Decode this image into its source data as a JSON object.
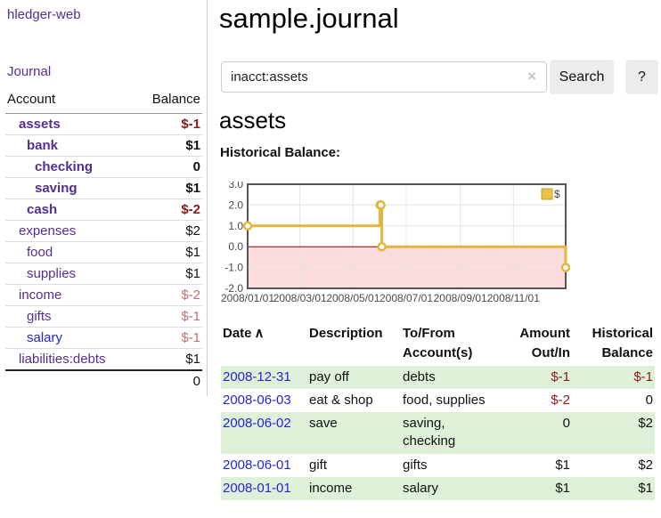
{
  "colors": {
    "link_purple": "#552e91",
    "link_blue": "#2525d6",
    "negative_strong": "#8b1a1a",
    "negative_muted": "#b97070",
    "row_green": "#dff0d8",
    "chart_line_gold": "#e3b53c",
    "chart_negative_fill": "#fbdbdb",
    "chart_zero_line": "#8b0000",
    "button_gray": "#ececec"
  },
  "sidebar": {
    "app_title": "hledger-web",
    "journal_link": "Journal",
    "accounts": {
      "headers": {
        "account": "Account",
        "balance": "Balance"
      },
      "rows": [
        {
          "name": "assets",
          "depth": 0,
          "bold": true,
          "name_color": "purple",
          "balance": "$-1",
          "balance_color": "maroon"
        },
        {
          "name": "bank",
          "depth": 1,
          "bold": true,
          "name_color": "purple",
          "balance": "$1",
          "balance_color": "black"
        },
        {
          "name": "checking",
          "depth": 2,
          "bold": true,
          "name_color": "purple",
          "balance": "0",
          "balance_color": "black"
        },
        {
          "name": "saving",
          "depth": 2,
          "bold": true,
          "name_color": "purple",
          "balance": "$1",
          "balance_color": "black"
        },
        {
          "name": "cash",
          "depth": 1,
          "bold": true,
          "name_color": "purple",
          "balance": "$-2",
          "balance_color": "maroon"
        },
        {
          "name": "expenses",
          "depth": 0,
          "bold": false,
          "name_color": "purple",
          "balance": "$2",
          "balance_color": "black"
        },
        {
          "name": "food",
          "depth": 1,
          "bold": false,
          "name_color": "purple",
          "balance": "$1",
          "balance_color": "black"
        },
        {
          "name": "supplies",
          "depth": 1,
          "bold": false,
          "name_color": "purple",
          "balance": "$1",
          "balance_color": "black"
        },
        {
          "name": "income",
          "depth": 0,
          "bold": false,
          "name_color": "purple",
          "balance": "$-2",
          "balance_color": "rose"
        },
        {
          "name": "gifts",
          "depth": 1,
          "bold": false,
          "name_color": "purple",
          "balance": "$-1",
          "balance_color": "rose"
        },
        {
          "name": "salary",
          "depth": 1,
          "bold": false,
          "name_color": "blue",
          "balance": "$-1",
          "balance_color": "rose"
        },
        {
          "name": "liabilities:debts",
          "depth": 0,
          "bold": false,
          "name_color": "purple",
          "balance": "$1",
          "balance_color": "black"
        }
      ],
      "total": "0"
    }
  },
  "main": {
    "title": "sample.journal",
    "search": {
      "value": "inacct:assets",
      "clear_icon": "×",
      "button": "Search",
      "help_button": "?"
    },
    "account_heading": "assets"
  },
  "chart_data": {
    "type": "line",
    "step": true,
    "title": "Historical Balance:",
    "series": [
      {
        "name": "$",
        "color": "#e3b53c",
        "points": [
          [
            "2008-01-01",
            1
          ],
          [
            "2008-06-01",
            2
          ],
          [
            "2008-06-02",
            2
          ],
          [
            "2008-06-03",
            0
          ],
          [
            "2008-12-31",
            -1
          ]
        ]
      }
    ],
    "x_domain": [
      "2008-01-01",
      "2008-12-31"
    ],
    "y_domain": [
      -2,
      3
    ],
    "x_ticks": [
      {
        "date": "2008-01-01",
        "label": "2008/01/01"
      },
      {
        "date": "2008-03-01",
        "label": "2008/03/01"
      },
      {
        "date": "2008-05-01",
        "label": "2008/05/01"
      },
      {
        "date": "2008-07-01",
        "label": "2008/07/01"
      },
      {
        "date": "2008-09-01",
        "label": "2008/09/01"
      },
      {
        "date": "2008-11-01",
        "label": "2008/11/01"
      }
    ],
    "y_ticks": [
      3,
      2,
      1,
      0,
      -1,
      -2
    ],
    "y_tick_labels": [
      "3.0",
      "2.0",
      "1.0",
      "0.0",
      "-1.0",
      "-2.0"
    ],
    "grid": true,
    "legend": {
      "label": "$",
      "position": "top-right"
    },
    "negative_region_fill": "#fbdbdb",
    "zero_line_color": "#8b0000"
  },
  "register": {
    "headers": [
      "Date",
      "Description",
      "To/From Account(s)",
      "Amount Out/In",
      "Historical Balance"
    ],
    "sort_icon": "∧",
    "rows": [
      {
        "date": "2008-12-31",
        "description": "pay off",
        "accounts": "debts",
        "amount": "$-1",
        "amount_negative": true,
        "balance": "$-1",
        "balance_negative": true
      },
      {
        "date": "2008-06-03",
        "description": "eat & shop",
        "accounts": "food, supplies",
        "amount": "$-2",
        "amount_negative": true,
        "balance": "0",
        "balance_negative": false
      },
      {
        "date": "2008-06-02",
        "description": "save",
        "accounts": "saving, checking",
        "amount": "0",
        "amount_negative": false,
        "balance": "$2",
        "balance_negative": false
      },
      {
        "date": "2008-06-01",
        "description": "gift",
        "accounts": "gifts",
        "amount": "$1",
        "amount_negative": false,
        "balance": "$2",
        "balance_negative": false
      },
      {
        "date": "2008-01-01",
        "description": "income",
        "accounts": "salary",
        "amount": "$1",
        "amount_negative": false,
        "balance": "$1",
        "balance_negative": false
      }
    ]
  }
}
